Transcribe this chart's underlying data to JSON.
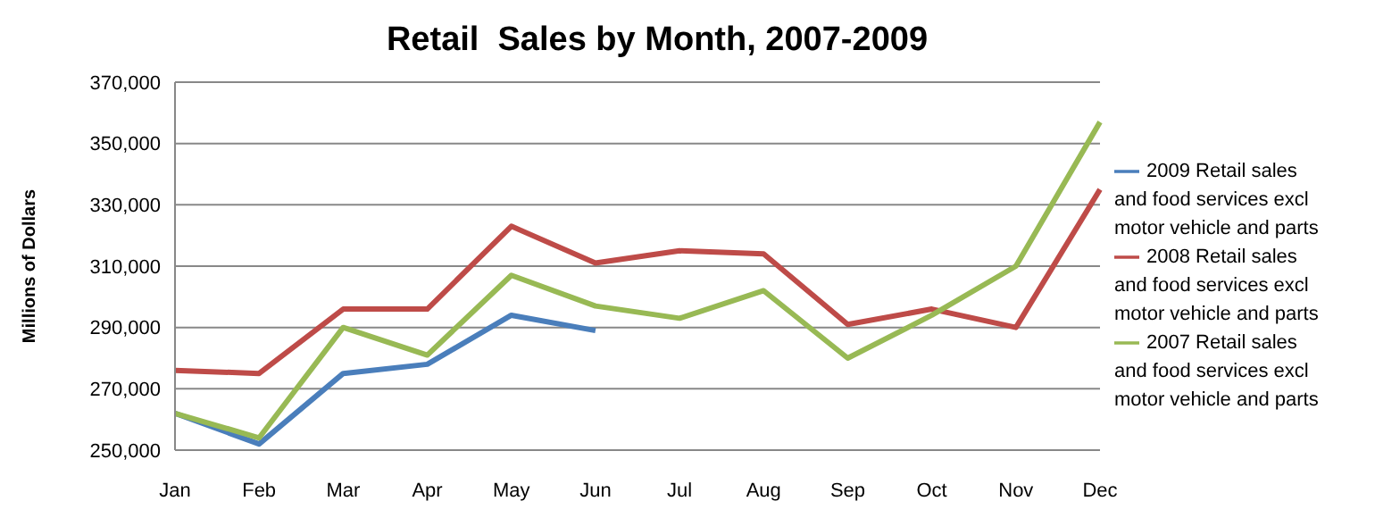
{
  "chart_data": {
    "type": "line",
    "title": "Retail  Sales by Month, 2007-2009",
    "ylabel": "Millions of Dollars",
    "categories": [
      "Jan",
      "Feb",
      "Mar",
      "Apr",
      "May",
      "Jun",
      "Jul",
      "Aug",
      "Sep",
      "Oct",
      "Nov",
      "Dec"
    ],
    "series": [
      {
        "name": "2009 Retail sales and food services excl motor vehicle and parts",
        "color": "#4a7ebb",
        "values": [
          262000,
          252000,
          275000,
          278000,
          294000,
          289000,
          null,
          null,
          null,
          null,
          null,
          null
        ]
      },
      {
        "name": "2008 Retail sales and food services excl motor vehicle and parts",
        "color": "#be4b48",
        "values": [
          276000,
          275000,
          296000,
          296000,
          323000,
          311000,
          315000,
          314000,
          291000,
          296000,
          290000,
          335000
        ]
      },
      {
        "name": "2007 Retail sales and food services excl motor vehicle and parts",
        "color": "#98b954",
        "values": [
          262000,
          254000,
          290000,
          281000,
          307000,
          297000,
          293000,
          302000,
          280000,
          294000,
          310000,
          357000
        ]
      }
    ],
    "ylim": [
      250000,
      370000
    ],
    "yticks": [
      {
        "value": 250000,
        "label": "250,000"
      },
      {
        "value": 270000,
        "label": "270,000"
      },
      {
        "value": 290000,
        "label": "290,000"
      },
      {
        "value": 310000,
        "label": "310,000"
      },
      {
        "value": 330000,
        "label": "330,000"
      },
      {
        "value": 350000,
        "label": "350,000"
      },
      {
        "value": 370000,
        "label": "370,000"
      }
    ],
    "grid": "y",
    "legend": "right",
    "marker": "none",
    "line_style": "solid"
  }
}
